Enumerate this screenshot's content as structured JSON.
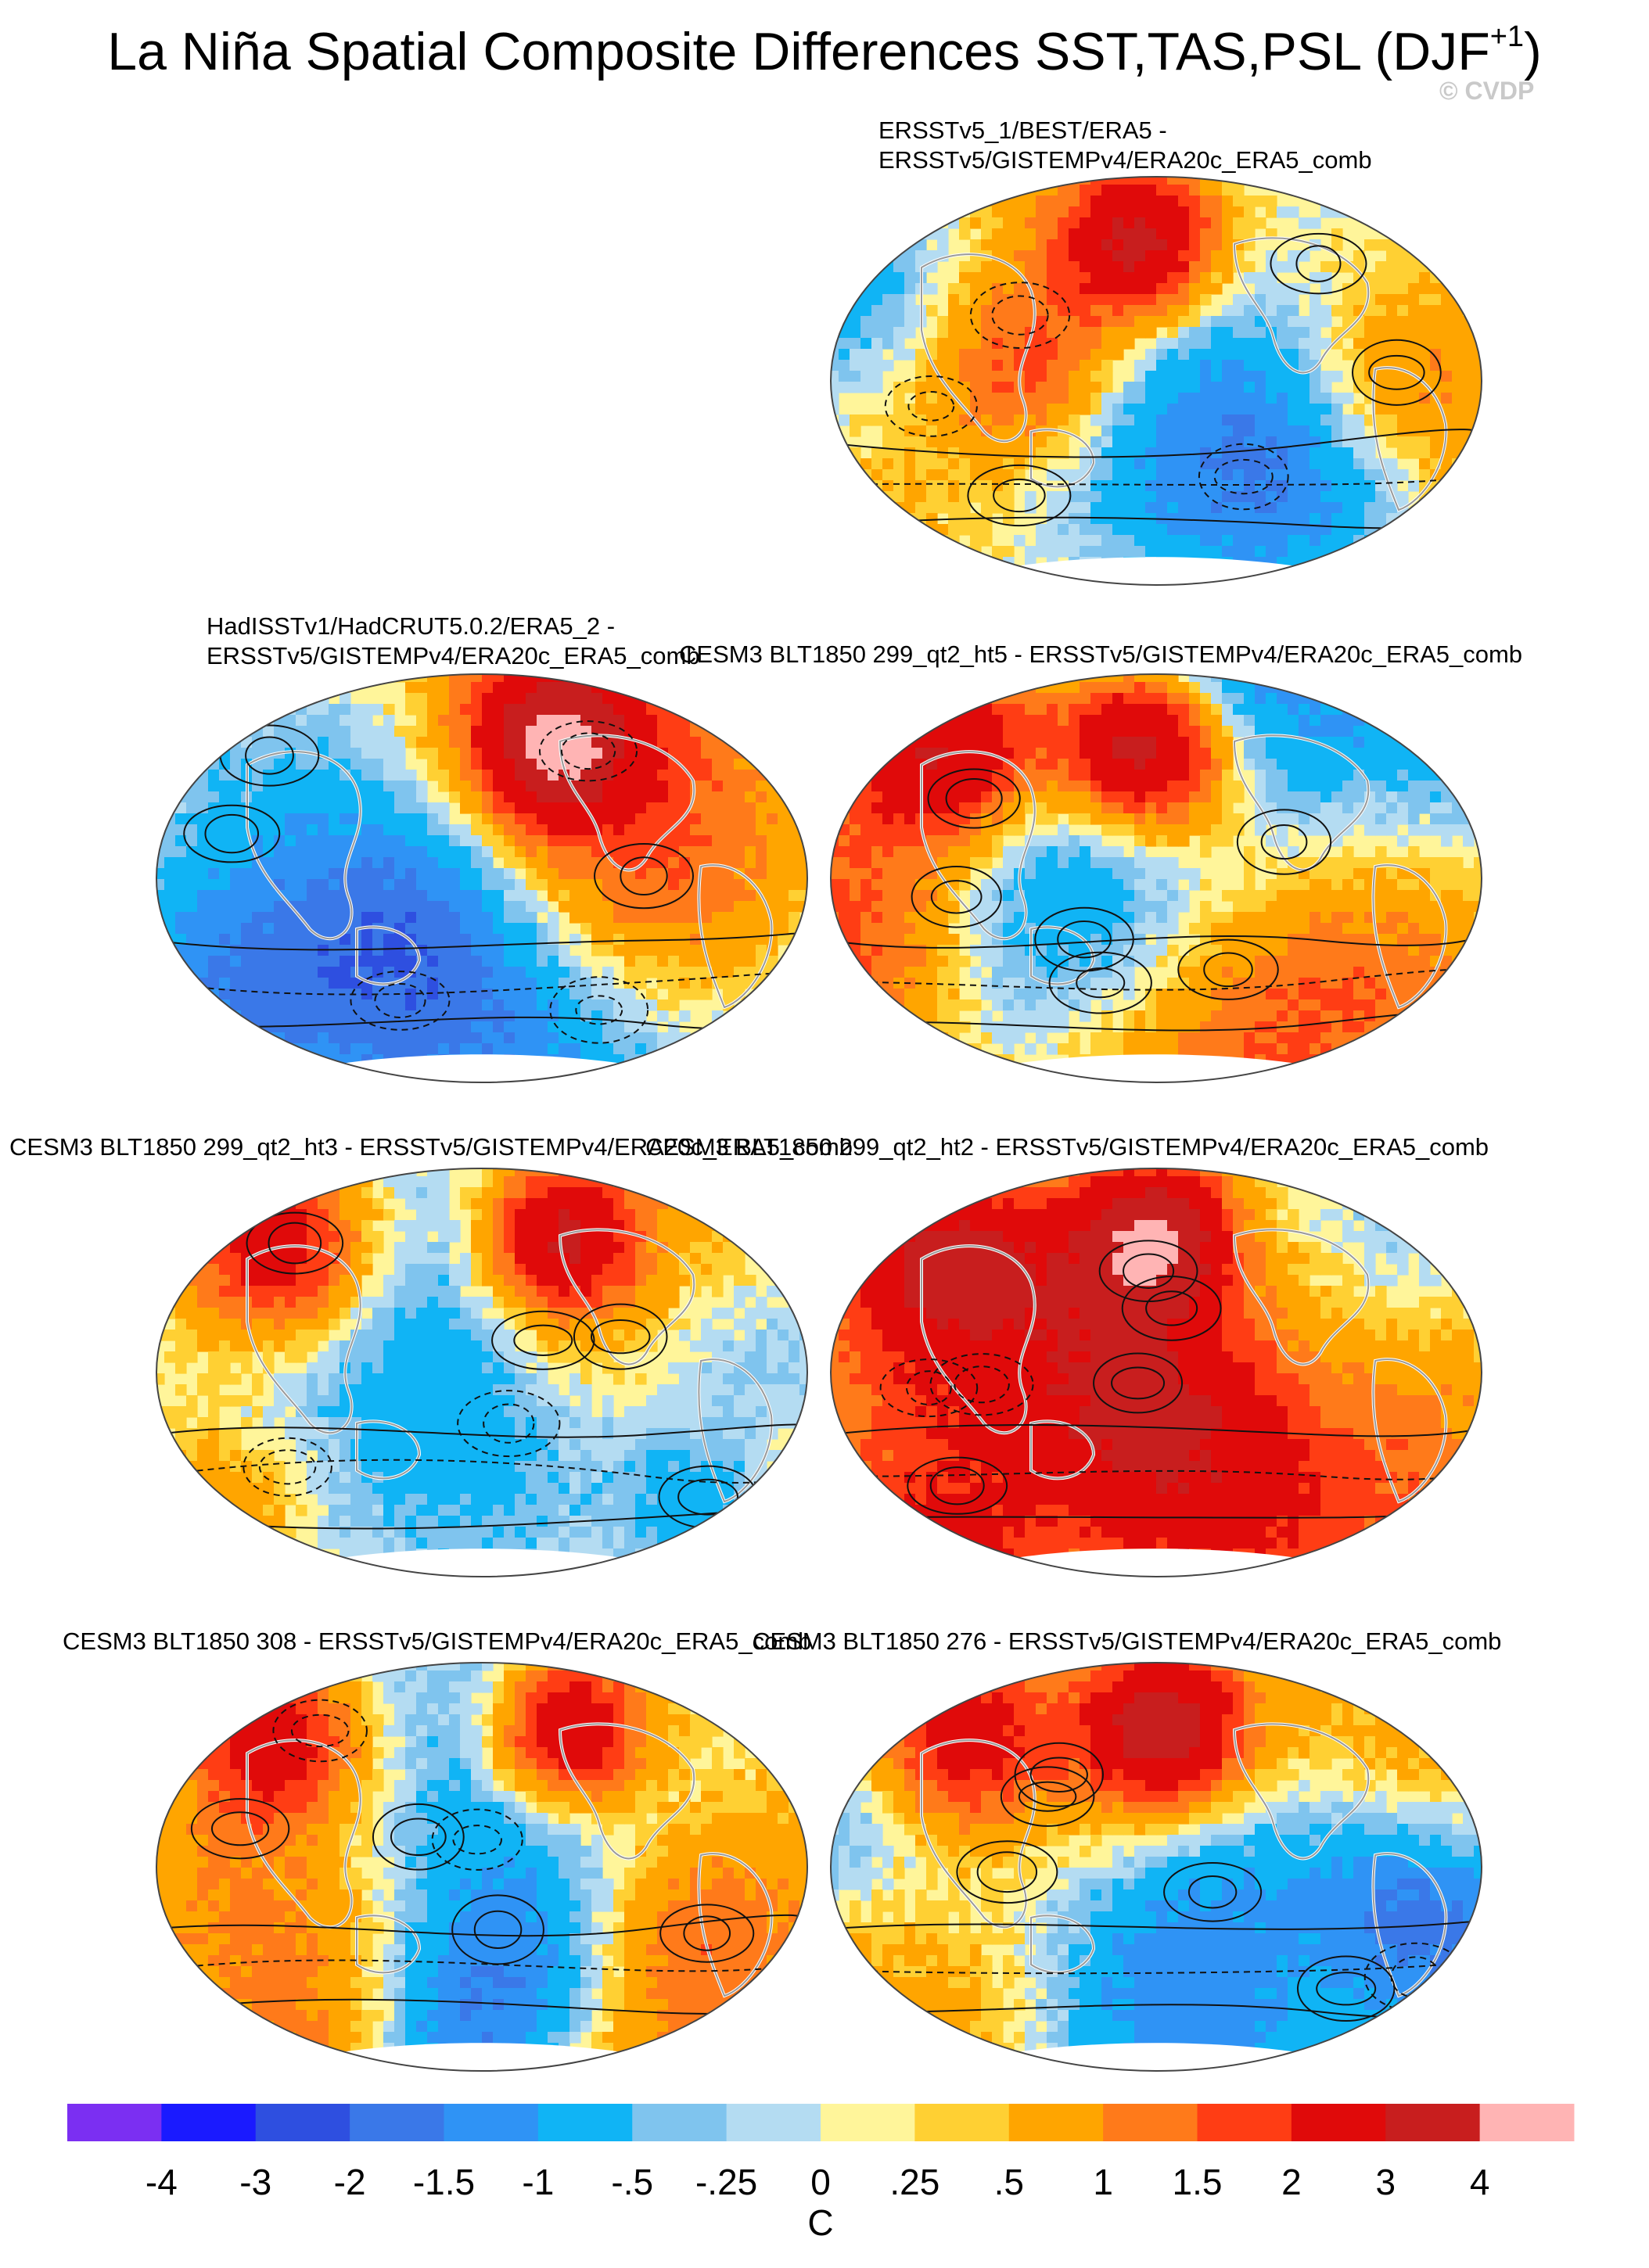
{
  "title": "La Niña Spatial Composite Differences SST,TAS,PSL (DJF",
  "title_sup": "+1",
  "title_close": ")",
  "watermark": "© CVDP",
  "panels": [
    {
      "line1": "ERSSTv5_1/BEST/ERA5 -",
      "line2": "ERSSTv5/GISTEMPv4/ERA20c_ERA5_comb"
    },
    {
      "line1": "HadISSTv1/HadCRUT5.0.2/ERA5_2 -",
      "line2": "ERSSTv5/GISTEMPv4/ERA20c_ERA5_comb"
    },
    {
      "line1": "CESM3 BLT1850 299_qt2_ht5 - ERSSTv5/GISTEMPv4/ERA20c_ERA5_comb",
      "line2": ""
    },
    {
      "line1": "CESM3 BLT1850 299_qt2_ht3 - ERSSTv5/GISTEMPv4/ERA20c_ERA5_comb",
      "line2": ""
    },
    {
      "line1": "CESM3 BLT1850 299_qt2_ht2 - ERSSTv5/GISTEMPv4/ERA20c_ERA5_comb",
      "line2": ""
    },
    {
      "line1": "CESM3 BLT1850 308 - ERSSTv5/GISTEMPv4/ERA20c_ERA5_comb",
      "line2": ""
    },
    {
      "line1": "CESM3 BLT1850 276 - ERSSTv5/GISTEMPv4/ERA20c_ERA5_comb",
      "line2": ""
    }
  ],
  "chart_data": {
    "type": "heatmap",
    "description_variable": "SST/TAS composite difference (shaded) with PSL contours",
    "colorbar": {
      "units": "C",
      "tick_labels": [
        "-4",
        "-3",
        "-2",
        "-1.5",
        "-1",
        "-.5",
        "-.25",
        "0",
        ".25",
        ".5",
        "1",
        "1.5",
        "2",
        "3",
        "4"
      ],
      "levels": [
        -4,
        -3,
        -2,
        -1.5,
        -1,
        -0.5,
        -0.25,
        0,
        0.25,
        0.5,
        1,
        1.5,
        2,
        3,
        4
      ],
      "colors": [
        "#7b2ff2",
        "#1a1aff",
        "#2e4fe0",
        "#3a78e8",
        "#2f93f5",
        "#10b4f5",
        "#7fc4ee",
        "#b4dcf2",
        "#fff59a",
        "#ffd033",
        "#ffa500",
        "#ff7a1a",
        "#ff3d14",
        "#e00a0a",
        "#c81e1e",
        "#ffb4b4"
      ]
    }
  }
}
